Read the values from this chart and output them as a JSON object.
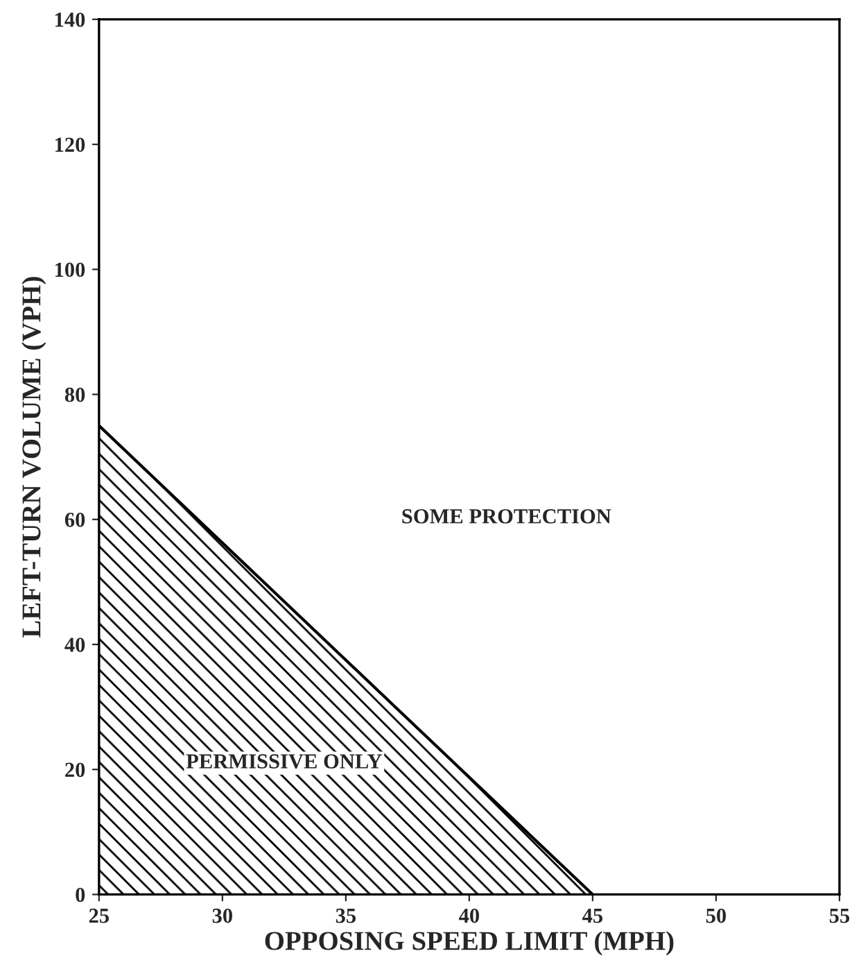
{
  "chart_data": {
    "type": "area",
    "xlabel": "OPPOSING SPEED LIMIT (MPH)",
    "ylabel": "LEFT-TURN VOLUME (VPH)",
    "series": [
      {
        "x": [
          25,
          45
        ],
        "values": [
          75,
          0
        ],
        "color": "#000000"
      }
    ],
    "xlim": [
      25,
      55
    ],
    "xticks": [
      25,
      30,
      35,
      40,
      45,
      50,
      55
    ],
    "ylim": [
      0,
      140
    ],
    "yticks": [
      0,
      20,
      40,
      60,
      80,
      100,
      120,
      140
    ],
    "grid": false,
    "annotations": [
      "SOME PROTECTION",
      "PERMISSIVE ONLY"
    ]
  }
}
